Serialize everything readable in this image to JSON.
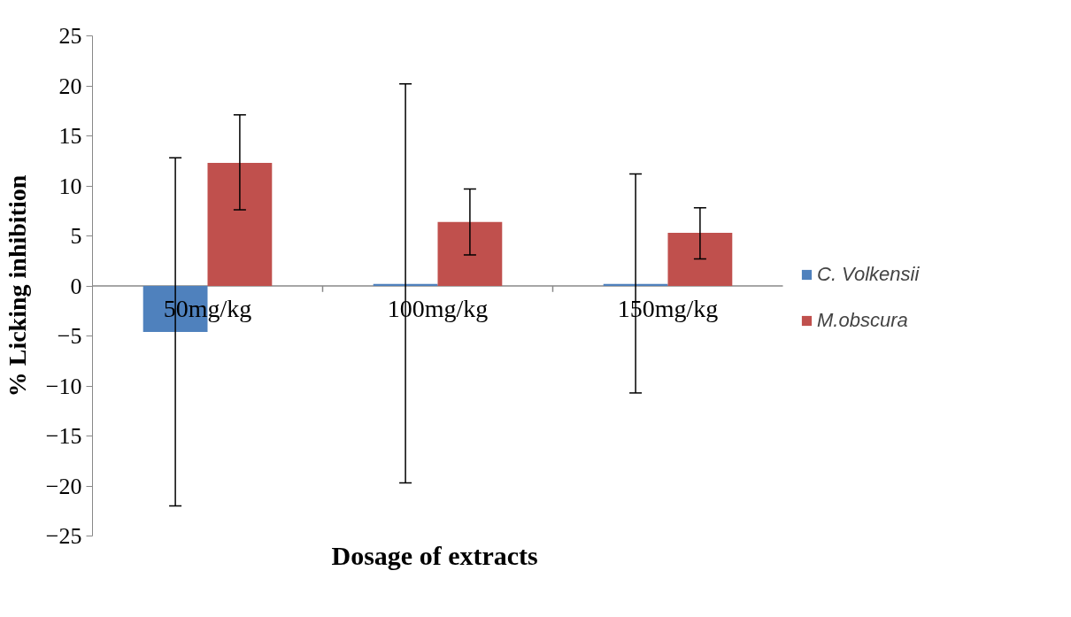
{
  "chart_data": {
    "type": "bar",
    "xlabel": "Dosage of extracts",
    "ylabel": "% Licking inhibition",
    "categories": [
      "50mg/kg",
      "100mg/kg",
      "150mg/kg"
    ],
    "series": [
      {
        "name": "C. Volkensii",
        "color": "#4f81bd",
        "values": [
          -4.6,
          0.2,
          0.2
        ],
        "errors": [
          [
            -22.0,
            12.8
          ],
          [
            -19.7,
            20.2
          ],
          [
            -10.7,
            11.2
          ]
        ]
      },
      {
        "name": "M.obscura",
        "color": "#c0504d",
        "values": [
          12.3,
          6.4,
          5.3
        ],
        "errors": [
          [
            7.6,
            17.1
          ],
          [
            3.1,
            9.7
          ],
          [
            2.7,
            7.8
          ]
        ]
      }
    ],
    "ylim": [
      -25,
      25
    ],
    "yticks": [
      -25,
      -20,
      -15,
      -10,
      -5,
      0,
      5,
      10,
      15,
      20,
      25
    ],
    "grid": false,
    "legend": "right"
  }
}
